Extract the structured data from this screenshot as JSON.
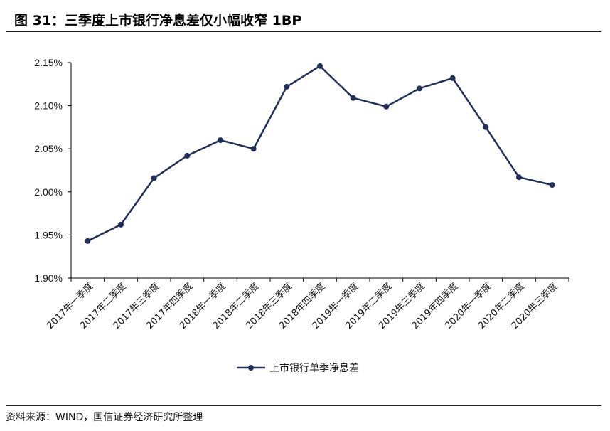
{
  "header": {
    "title": "图 31：三季度上市银行净息差仅小幅收窄 1BP"
  },
  "footer": {
    "source": "资料来源：WIND，国信证券经济研究所整理"
  },
  "colors": {
    "series": "#1f2f5a",
    "axis": "#000000"
  },
  "chart_data": {
    "type": "line",
    "title": "",
    "xlabel": "",
    "ylabel": "",
    "ylim": [
      1.9,
      2.15
    ],
    "yticks": [
      "1.90%",
      "1.95%",
      "2.00%",
      "2.05%",
      "2.10%",
      "2.15%"
    ],
    "grid": false,
    "legend": "bottom",
    "categories": [
      "2017年一季度",
      "2017年二季度",
      "2017年三季度",
      "2017年四季度",
      "2018年一季度",
      "2018年二季度",
      "2018年三季度",
      "2018年四季度",
      "2019年一季度",
      "2019年二季度",
      "2019年三季度",
      "2019年四季度",
      "2020年一季度",
      "2020年二季度",
      "2020年三季度"
    ],
    "series": [
      {
        "name": "上市银行单季净息差",
        "values": [
          1.943,
          1.962,
          2.016,
          2.042,
          2.06,
          2.05,
          2.122,
          2.146,
          2.109,
          2.099,
          2.12,
          2.132,
          2.075,
          2.017,
          2.008
        ]
      }
    ]
  }
}
